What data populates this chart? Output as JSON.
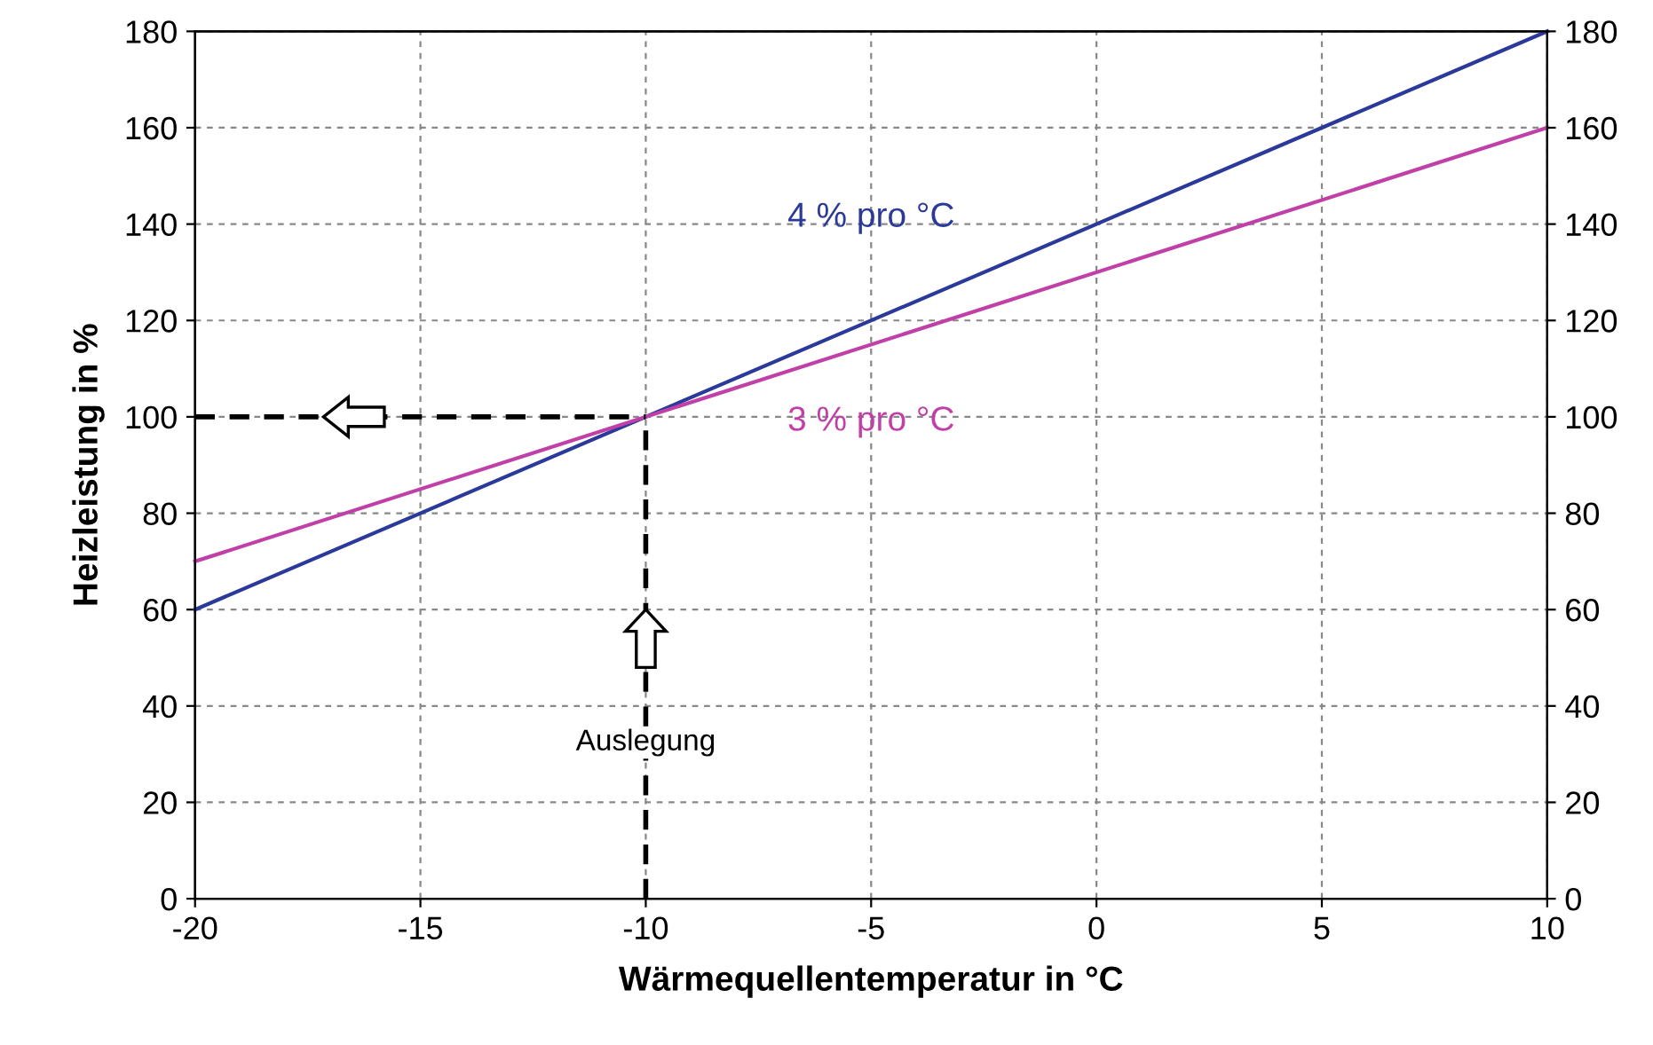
{
  "chart_data": {
    "type": "line",
    "xlabel": "Wärmequellentemperatur in °C",
    "ylabel": "Heizleistung in %",
    "x": [
      -20,
      10
    ],
    "series": [
      {
        "name": "4 % pro °C",
        "color": "#2b3a9a",
        "values": [
          60,
          180
        ]
      },
      {
        "name": "3 % pro °C",
        "color": "#c040a8",
        "values": [
          70,
          160
        ]
      }
    ],
    "ref_lines": [
      {
        "axis": "y",
        "value": 100,
        "color": "#000000",
        "line_style": "dashed"
      },
      {
        "axis": "x",
        "value": -10,
        "color": "#000000",
        "line_style": "dashed"
      }
    ],
    "annotations": [
      "Auslegung"
    ],
    "xlim": [
      -20,
      10
    ],
    "xticks": [
      -20,
      -15,
      -10,
      -5,
      0,
      5,
      10
    ],
    "ylim": [
      0,
      180
    ],
    "yticks": [
      0,
      20,
      40,
      60,
      80,
      100,
      120,
      140,
      160,
      180
    ],
    "y2lim": [
      0,
      180
    ],
    "y2ticks": [
      0,
      20,
      40,
      60,
      80,
      100,
      120,
      140,
      160,
      180
    ],
    "grid": true,
    "legend": false,
    "marker": "none",
    "line_style": "solid"
  }
}
